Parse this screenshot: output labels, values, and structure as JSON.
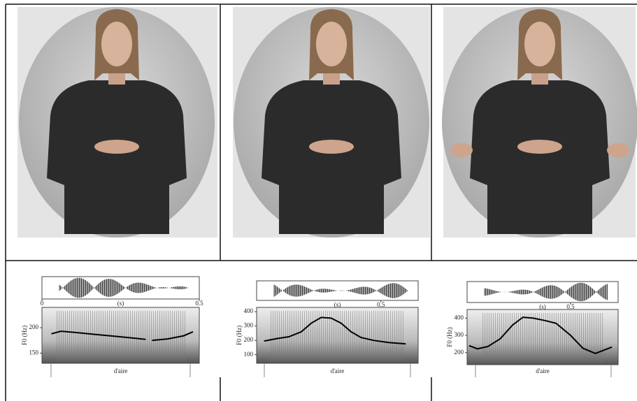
{
  "panels": [
    {
      "xticks": [
        0,
        0.5
      ],
      "xlim": [
        0,
        0.5
      ],
      "xlabel": "(s)",
      "ylabel": "F0 (Hz)",
      "yticks": [
        150,
        200
      ],
      "ylim": [
        130,
        240
      ],
      "word": "d'aire",
      "f0": {
        "x": [
          0.03,
          0.06,
          0.1,
          0.15,
          0.2,
          0.25,
          0.3,
          0.33,
          null,
          0.35,
          0.4,
          0.45,
          0.48
        ],
        "y": [
          188,
          193,
          191,
          188,
          185,
          182,
          179,
          177,
          null,
          175,
          178,
          184,
          192
        ]
      }
    },
    {
      "xticks": [
        0.5
      ],
      "xlim": [
        0,
        0.65
      ],
      "xlabel": "(s)",
      "ylabel": "F0 (Hz)",
      "yticks": [
        100,
        200,
        300,
        400
      ],
      "ylim": [
        40,
        430
      ],
      "word": "d'aire",
      "f0": {
        "x": [
          0.03,
          0.08,
          0.13,
          0.18,
          0.22,
          0.26,
          0.3,
          0.34,
          0.38,
          0.42,
          0.47,
          0.53,
          0.6
        ],
        "y": [
          195,
          212,
          225,
          260,
          320,
          360,
          355,
          320,
          260,
          220,
          200,
          185,
          175
        ]
      }
    },
    {
      "xticks": [
        0.5
      ],
      "xlim": [
        0,
        0.73
      ],
      "xlabel": "(s)",
      "ylabel": "F0 (Hz)",
      "yticks": [
        200,
        300,
        400
      ],
      "ylim": [
        130,
        450
      ],
      "word": "d'aire",
      "f0": {
        "x": [
          0.01,
          0.05,
          0.1,
          0.16,
          0.22,
          0.27,
          0.32,
          0.38,
          0.43,
          0.5,
          0.56,
          0.62,
          0.7
        ],
        "y": [
          240,
          222,
          235,
          280,
          360,
          405,
          400,
          385,
          370,
          300,
          225,
          195,
          232
        ]
      }
    }
  ]
}
